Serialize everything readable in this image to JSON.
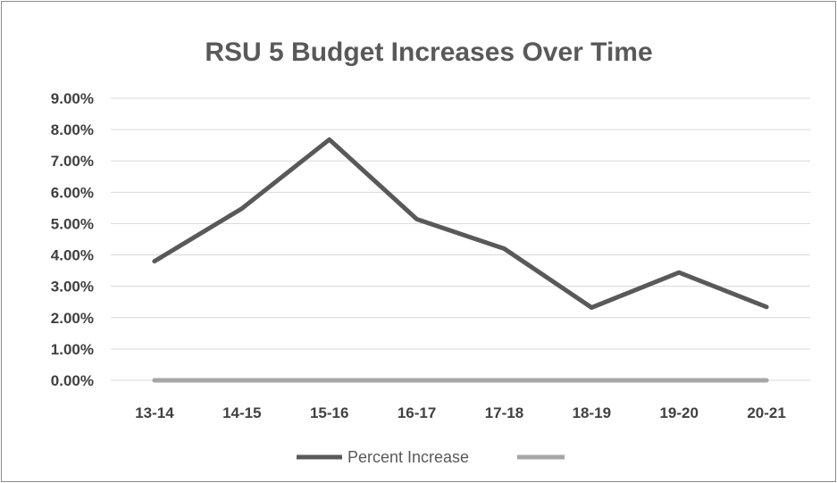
{
  "chart_data": {
    "type": "line",
    "title": "RSU 5 Budget Increases Over Time",
    "xlabel": "",
    "ylabel": "",
    "categories": [
      "13-14",
      "14-15",
      "15-16",
      "16-17",
      "17-18",
      "18-19",
      "19-20",
      "20-21"
    ],
    "series": [
      {
        "name": "Percent Increase",
        "values": [
          3.8,
          5.48,
          7.68,
          5.14,
          4.2,
          2.32,
          3.44,
          2.34
        ],
        "color": "#595959"
      },
      {
        "name": "",
        "values": [
          0,
          0,
          0,
          0,
          0,
          0,
          0,
          0
        ],
        "color": "#a6a6a6"
      }
    ],
    "ylim": [
      0,
      9
    ],
    "yticks": [
      "0.00%",
      "1.00%",
      "2.00%",
      "3.00%",
      "4.00%",
      "5.00%",
      "6.00%",
      "7.00%",
      "8.00%",
      "9.00%"
    ],
    "grid": true,
    "legend_position": "bottom"
  }
}
